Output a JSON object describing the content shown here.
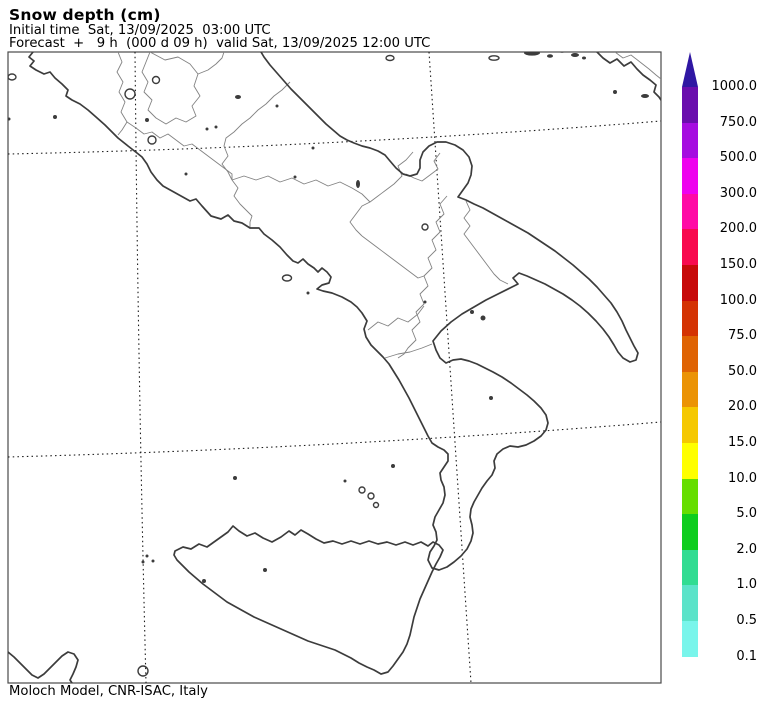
{
  "header": {
    "title": "Snow depth (cm)",
    "initial_time_line": "Initial time  Sat, 13/09/2025  03:00 UTC",
    "forecast_line": "Forecast  +   9 h  (000 d 09 h)  valid Sat, 13/09/2025 12:00 UTC"
  },
  "footer": {
    "credit": "Moloch Model, CNR-ISAC, Italy"
  },
  "legend": {
    "unit": "cm",
    "arrow_color": "#2F17A3",
    "segments": [
      {
        "top_label": "1000.0",
        "color": "#6A0DAD"
      },
      {
        "top_label": "750.0",
        "color": "#A50CE0"
      },
      {
        "top_label": "500.0",
        "color": "#EE02EE"
      },
      {
        "top_label": "300.0",
        "color": "#FF0AA5"
      },
      {
        "top_label": "200.0",
        "color": "#F8094E"
      },
      {
        "top_label": "150.0",
        "color": "#C70909"
      },
      {
        "top_label": "100.0",
        "color": "#D43303"
      },
      {
        "top_label": "75.0",
        "color": "#DF6303"
      },
      {
        "top_label": "50.0",
        "color": "#EB9305"
      },
      {
        "top_label": "20.0",
        "color": "#F5C801"
      },
      {
        "top_label": "15.0",
        "color": "#FFFF00"
      },
      {
        "top_label": "10.0",
        "color": "#66DE00"
      },
      {
        "top_label": "5.0",
        "color": "#0ECD1E"
      },
      {
        "top_label": "2.0",
        "color": "#31DC92"
      },
      {
        "top_label": "1.0",
        "color": "#5BE3C9"
      },
      {
        "top_label": "0.5",
        "color": "#79F5EB"
      }
    ],
    "bottom_label": "0.1"
  },
  "map_style": {
    "coastline_color": "#3C3C3C",
    "border_color": "#828282",
    "grid_color": "#1A1A1A",
    "frame_color": "#4A4A4A",
    "sea_land_fill": "#FFFFFF"
  }
}
